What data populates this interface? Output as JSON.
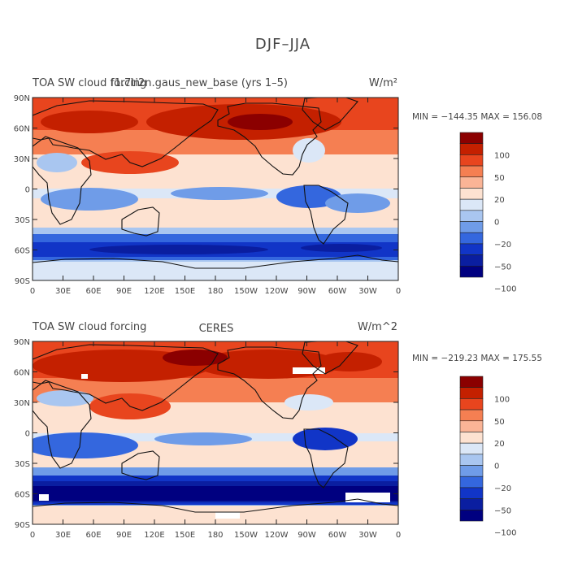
{
  "figure": {
    "title": "DJF–JJA"
  },
  "panels": [
    {
      "name": "model",
      "variable_label": "TOA SW cloud forcing",
      "case_label": "f1.7ti2n.gaus_new_base (yrs 1–5)",
      "units_label": "W/m²",
      "stats": "MIN = −144.35  MAX = 156.08"
    },
    {
      "name": "obs",
      "variable_label": "TOA SW cloud forcing",
      "case_label": "CERES",
      "units_label": "W/m^2",
      "stats": "MIN = −219.23  MAX = 175.55"
    }
  ],
  "colorbar": {
    "tick_labels": [
      "100",
      "50",
      "20",
      "0",
      "−20",
      "−50",
      "−100"
    ],
    "colors": [
      "#8b0000",
      "#c42000",
      "#e8451e",
      "#f57f52",
      "#fab496",
      "#fde2d1",
      "#dbe7f7",
      "#a9c6f0",
      "#6f9ce8",
      "#3467de",
      "#1135c7",
      "#0a1ea0",
      "#000080"
    ]
  },
  "chart_data": {
    "type": "heatmap",
    "title": "DJF–JJA",
    "quantity": "TOA SW cloud forcing difference (DJF minus JJA)",
    "units": "W/m^2",
    "x_ticks": [
      "0",
      "30E",
      "60E",
      "90E",
      "120E",
      "150E",
      "180",
      "150W",
      "120W",
      "90W",
      "60W",
      "30W",
      "0"
    ],
    "y_ticks": [
      "90N",
      "60N",
      "30N",
      "0",
      "30S",
      "60S",
      "90S"
    ],
    "xlim": [
      0,
      360
    ],
    "ylim": [
      -90,
      90
    ],
    "contour_levels": [
      -100,
      -50,
      -20,
      0,
      20,
      50,
      100
    ],
    "series": [
      {
        "name": "f1.7ti2n.gaus_new_base (yrs 1–5)",
        "min": -144.35,
        "max": 156.08
      },
      {
        "name": "CERES",
        "min": -219.23,
        "max": 175.55
      }
    ]
  }
}
